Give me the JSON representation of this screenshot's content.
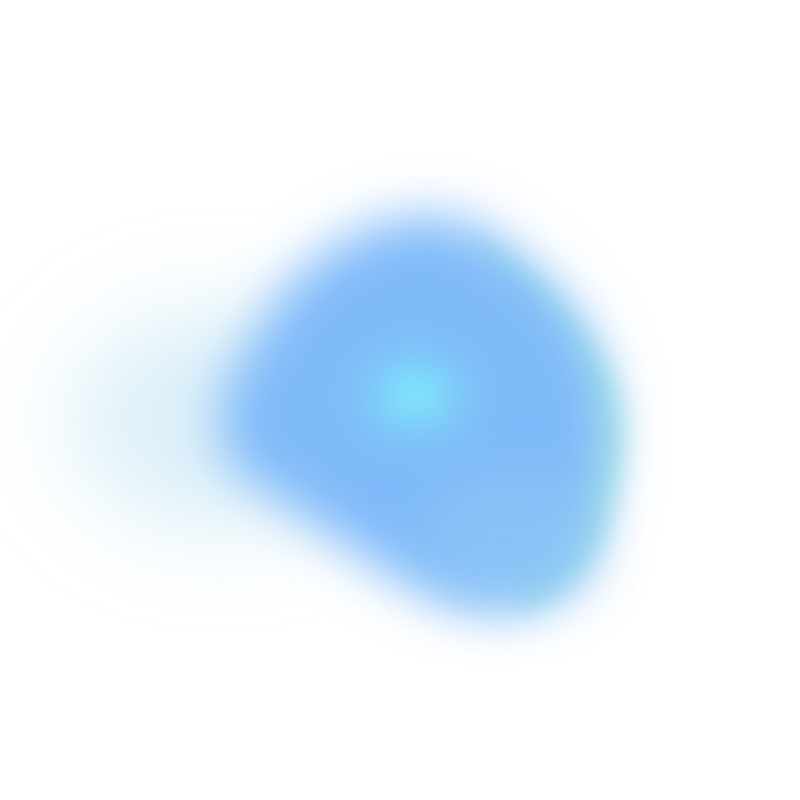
{
  "colors": {
    "background": "#ffffff",
    "core": "#7ef0fb",
    "primary_blue": "#7fbaf9",
    "mid_blue": "#8cc6f6",
    "edge_mint": "#a9f0d9",
    "left_lobe": "#bfe3f3"
  }
}
